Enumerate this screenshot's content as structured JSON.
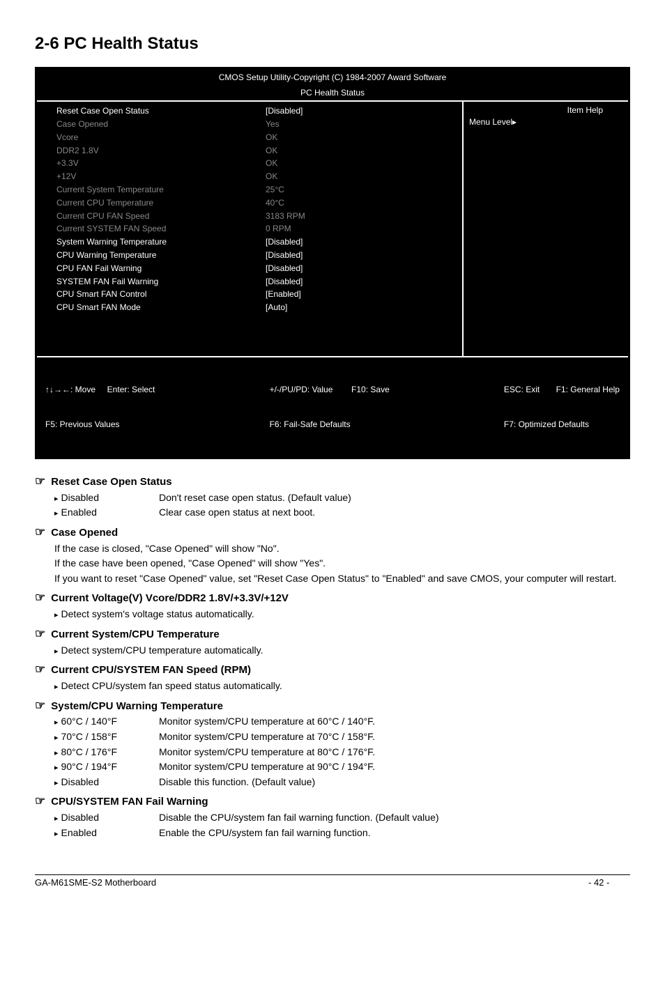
{
  "page_title": "2-6    PC Health Status",
  "bios": {
    "title1": "CMOS Setup Utility-Copyright (C) 1984-2007 Award Software",
    "title2": "PC Health Status",
    "rows": [
      {
        "label": "Reset Case Open Status",
        "val": "[Disabled]",
        "dim": false
      },
      {
        "label": "Case Opened",
        "val": "Yes",
        "dim": true
      },
      {
        "label": "Vcore",
        "val": "OK",
        "dim": true
      },
      {
        "label": "DDR2 1.8V",
        "val": "OK",
        "dim": true
      },
      {
        "label": "+3.3V",
        "val": "OK",
        "dim": true
      },
      {
        "label": "+12V",
        "val": "OK",
        "dim": true
      },
      {
        "label": "Current System Temperature",
        "val": "25°C",
        "dim": true
      },
      {
        "label": "Current CPU Temperature",
        "val": "40°C",
        "dim": true
      },
      {
        "label": "Current CPU FAN Speed",
        "val": "3183 RPM",
        "dim": true
      },
      {
        "label": "Current SYSTEM FAN Speed",
        "val": "0      RPM",
        "dim": true
      },
      {
        "label": "System Warning Temperature",
        "val": "[Disabled]",
        "dim": false
      },
      {
        "label": "CPU Warning Temperature",
        "val": "[Disabled]",
        "dim": false
      },
      {
        "label": "CPU FAN Fail Warning",
        "val": "[Disabled]",
        "dim": false
      },
      {
        "label": "SYSTEM FAN Fail Warning",
        "val": "[Disabled]",
        "dim": false
      },
      {
        "label": "CPU Smart FAN Control",
        "val": "[Enabled]",
        "dim": false
      },
      {
        "label": "CPU Smart FAN Mode",
        "val": "[Auto]",
        "dim": false
      }
    ],
    "help_header": "Item Help",
    "help_level": "Menu Level▸",
    "footer_l1": "↑↓→←: Move     Enter: Select",
    "footer_l2": "F5: Previous Values",
    "footer_c1": "+/-/PU/PD: Value        F10: Save",
    "footer_c2": "F6: Fail-Safe Defaults",
    "footer_r1": "ESC: Exit       F1: General Help",
    "footer_r2": "F7: Optimized Defaults"
  },
  "s1": {
    "title": "Reset Case Open Status",
    "o1k": "Disabled",
    "o1d": "Don't reset case open status. (Default value)",
    "o2k": "Enabled",
    "o2d": "Clear case open status at next boot."
  },
  "s2": {
    "title": "Case Opened",
    "p1": "If the case is closed, \"Case Opened\" will show \"No\".",
    "p2": "If the case have been opened, \"Case Opened\" will show \"Yes\".",
    "p3": "If you want to reset \"Case Opened\" value, set \"Reset Case Open Status\" to \"Enabled\" and save CMOS, your computer will restart."
  },
  "s3": {
    "title": "Current Voltage(V) Vcore/DDR2 1.8V/+3.3V/+12V",
    "b1": "Detect system's voltage status automatically."
  },
  "s4": {
    "title": "Current System/CPU Temperature",
    "b1": "Detect system/CPU temperature automatically."
  },
  "s5": {
    "title": "Current CPU/SYSTEM FAN Speed (RPM)",
    "b1": "Detect CPU/system fan speed status automatically."
  },
  "s6": {
    "title": "System/CPU Warning Temperature",
    "o1k": "60°C / 140°F",
    "o1d": "Monitor system/CPU temperature at 60°C / 140°F.",
    "o2k": "70°C / 158°F",
    "o2d": "Monitor system/CPU temperature at 70°C / 158°F.",
    "o3k": "80°C / 176°F",
    "o3d": "Monitor system/CPU temperature at 80°C / 176°F.",
    "o4k": "90°C / 194°F",
    "o4d": "Monitor system/CPU temperature at 90°C / 194°F.",
    "o5k": "Disabled",
    "o5d": "Disable this function. (Default value)"
  },
  "s7": {
    "title": "CPU/SYSTEM FAN Fail Warning",
    "o1k": "Disabled",
    "o1d": "Disable the CPU/system fan fail warning function. (Default value)",
    "o2k": "Enabled",
    "o2d": "Enable the CPU/system fan fail warning function."
  },
  "footer": {
    "left": "GA-M61SME-S2 Motherboard",
    "right": "- 42 -"
  }
}
